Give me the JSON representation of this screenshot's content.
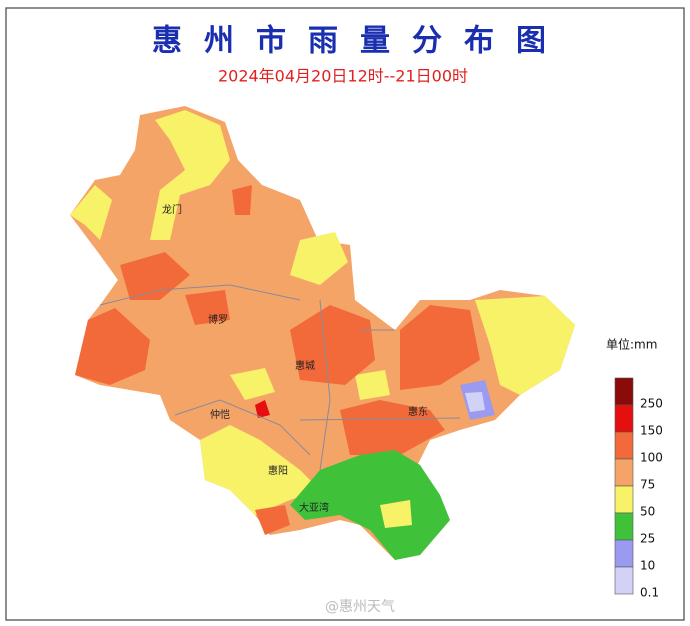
{
  "header": {
    "title": "惠州市雨量分布图",
    "subtitle": "2024年04月20日12时--21日00时"
  },
  "districts": [
    "龙门",
    "博罗",
    "惠城",
    "仲恺",
    "惠东",
    "惠阳",
    "大亚湾"
  ],
  "legend": {
    "unit": "单位:mm",
    "classes": [
      {
        "label": "250",
        "color": "#8b0a0a"
      },
      {
        "label": "150",
        "color": "#e60f0f"
      },
      {
        "label": "100",
        "color": "#f26a3a"
      },
      {
        "label": "75",
        "color": "#f5a468"
      },
      {
        "label": "50",
        "color": "#f7f268"
      },
      {
        "label": "25",
        "color": "#3fc23a"
      },
      {
        "label": "10",
        "color": "#9a9af0"
      },
      {
        "label": "0.1",
        "color": "#d2d2f6"
      }
    ]
  },
  "watermark": "@惠州天气"
}
